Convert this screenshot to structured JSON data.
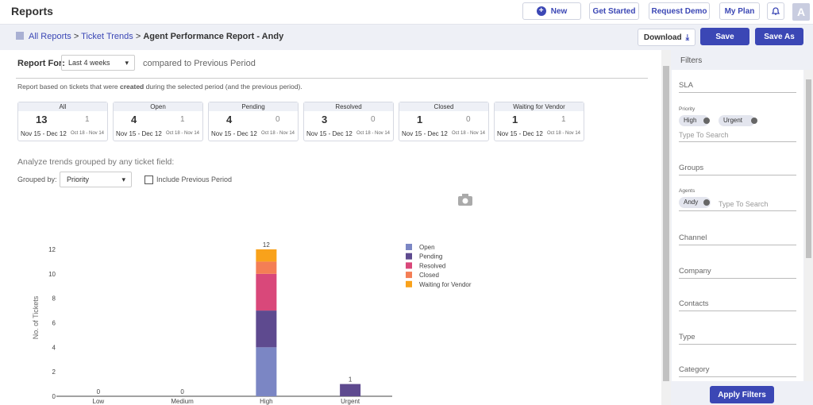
{
  "header": {
    "title": "Reports",
    "buttons": [
      "New",
      "Get Started",
      "Request Demo",
      "My Plan"
    ],
    "avatar": "A"
  },
  "breadcrumb": {
    "links": [
      "All Reports",
      "Ticket Trends"
    ],
    "separator": ">",
    "current": "Agent Performance Report - Andy"
  },
  "actions": {
    "download": "Download",
    "save": "Save",
    "save_as": "Save As"
  },
  "report_for": {
    "label": "Report For:",
    "period": "Last 4 weeks",
    "comparison": "compared to Previous Period"
  },
  "note": {
    "before": "Report based on tickets that were",
    "emphasis": "created",
    "after": "during the selected period (and the previous period)."
  },
  "cards": [
    {
      "label": "All",
      "current": 13,
      "previous": 1,
      "current_range": "Nov 15 - Dec 12",
      "previous_range": "Oct 18 - Nov 14"
    },
    {
      "label": "Open",
      "current": 4,
      "previous": 1,
      "current_range": "Nov 15 - Dec 12",
      "previous_range": "Oct 18 - Nov 14"
    },
    {
      "label": "Pending",
      "current": 4,
      "previous": 0,
      "current_range": "Nov 15 - Dec 12",
      "previous_range": "Oct 18 - Nov 14"
    },
    {
      "label": "Resolved",
      "current": 3,
      "previous": 0,
      "current_range": "Nov 15 - Dec 12",
      "previous_range": "Oct 18 - Nov 14"
    },
    {
      "label": "Closed",
      "current": 1,
      "previous": 0,
      "current_range": "Nov 15 - Dec 12",
      "previous_range": "Oct 18 - Nov 14"
    },
    {
      "label": "Waiting for Vendor",
      "current": 1,
      "previous": 1,
      "current_range": "Nov 15 - Dec 12",
      "previous_range": "Oct 18 - Nov 14"
    }
  ],
  "analyze": {
    "heading": "Analyze trends grouped by any ticket field:",
    "grouped_by_label": "Grouped by:",
    "grouped_by": "Priority",
    "include_previous": "Include Previous Period"
  },
  "chart_data": {
    "type": "stacked_bar",
    "y_label": "No. of Tickets",
    "categories": [
      "Low",
      "Medium",
      "High",
      "Urgent"
    ],
    "series": [
      {
        "name": "Open",
        "color": "#7b86c4",
        "values": [
          0,
          0,
          4,
          0
        ]
      },
      {
        "name": "Pending",
        "color": "#5e4a8f",
        "values": [
          0,
          0,
          3,
          1
        ]
      },
      {
        "name": "Resolved",
        "color": "#d9487a",
        "values": [
          0,
          0,
          3,
          0
        ]
      },
      {
        "name": "Closed",
        "color": "#f47e55",
        "values": [
          0,
          0,
          1,
          0
        ]
      },
      {
        "name": "Waiting for Vendor",
        "color": "#f9a21b",
        "values": [
          0,
          0,
          1,
          0
        ]
      }
    ],
    "totals": [
      0,
      0,
      12,
      1
    ],
    "ylim": [
      0,
      12
    ],
    "yticks": [
      0,
      2,
      4,
      6,
      8,
      10,
      12
    ],
    "grid": false
  },
  "filters": {
    "title": "Filters",
    "fields": [
      {
        "label": "SLA"
      },
      {
        "label": "Priority",
        "chips": [
          "High",
          "Urgent"
        ],
        "placeholder": "Type To Search"
      },
      {
        "label": "Groups"
      },
      {
        "label": "Agents",
        "chips": [
          "Andy"
        ],
        "placeholder": "Type To Search"
      },
      {
        "label": "Channel"
      },
      {
        "label": "Company"
      },
      {
        "label": "Contacts"
      },
      {
        "label": "Type"
      },
      {
        "label": "Category"
      }
    ],
    "apply": "Apply Filters"
  }
}
